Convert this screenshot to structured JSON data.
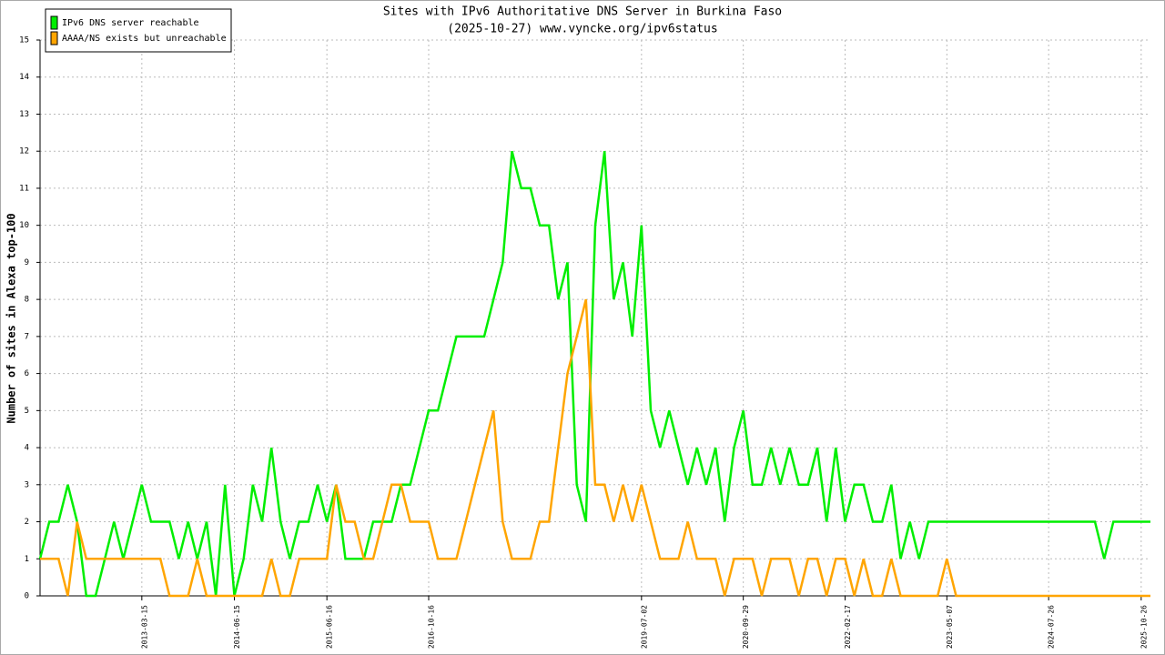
{
  "chart_data": {
    "type": "line",
    "title": "Sites with IPv6 Authoritative DNS Server in Burkina Faso",
    "subtitle": "(2025-10-27) www.vyncke.org/ipv6status",
    "y_label": "Number of sites in Alexa top-100",
    "categories": [
      null,
      null,
      null,
      null,
      null,
      null,
      null,
      null,
      null,
      null,
      null,
      "2013-03-15",
      null,
      null,
      null,
      null,
      null,
      null,
      null,
      null,
      null,
      "2014-06-15",
      null,
      null,
      null,
      null,
      null,
      null,
      null,
      null,
      null,
      "2015-06-16",
      null,
      null,
      null,
      null,
      null,
      null,
      null,
      null,
      null,
      null,
      "2016-10-16",
      null,
      null,
      null,
      null,
      null,
      null,
      null,
      null,
      null,
      null,
      null,
      null,
      null,
      null,
      null,
      null,
      null,
      null,
      null,
      null,
      null,
      null,
      "2019-07-02",
      null,
      null,
      null,
      null,
      null,
      null,
      null,
      null,
      null,
      null,
      "2020-09-29",
      null,
      null,
      null,
      null,
      null,
      null,
      null,
      null,
      null,
      null,
      "2022-02-17",
      null,
      null,
      null,
      null,
      null,
      null,
      null,
      null,
      null,
      null,
      "2023-05-07",
      null,
      null,
      null,
      null,
      null,
      null,
      null,
      null,
      null,
      null,
      "2024-07-26",
      null,
      null,
      null,
      null,
      null,
      null,
      null,
      null,
      null,
      "2025-10-26",
      null
    ],
    "series": [
      {
        "name": "IPv6 DNS server reachable",
        "color": "#00ee00",
        "values": [
          1,
          2,
          2,
          3,
          2,
          0,
          0,
          1,
          2,
          1,
          2,
          3,
          2,
          2,
          2,
          1,
          2,
          1,
          2,
          0,
          3,
          0,
          1,
          3,
          2,
          4,
          2,
          1,
          2,
          2,
          3,
          2,
          3,
          1,
          1,
          1,
          2,
          2,
          2,
          3,
          3,
          4,
          5,
          5,
          6,
          7,
          7,
          7,
          7,
          8,
          9,
          12,
          11,
          11,
          10,
          10,
          8,
          9,
          3,
          2,
          10,
          12,
          8,
          9,
          7,
          10,
          5,
          4,
          5,
          4,
          3,
          4,
          3,
          4,
          2,
          4,
          5,
          3,
          3,
          4,
          3,
          4,
          3,
          3,
          4,
          2,
          4,
          2,
          3,
          3,
          2,
          2,
          3,
          1,
          2,
          1,
          2,
          2,
          2,
          2,
          2,
          2,
          2,
          2,
          2,
          2,
          2,
          2,
          2,
          2,
          2,
          2,
          2,
          2,
          2,
          1,
          2,
          2,
          2,
          2,
          2
        ]
      },
      {
        "name": "AAAA/NS exists but unreachable",
        "color": "#ffa500",
        "values": [
          1,
          1,
          1,
          0,
          2,
          1,
          1,
          1,
          1,
          1,
          1,
          1,
          1,
          1,
          0,
          0,
          0,
          1,
          0,
          0,
          0,
          0,
          0,
          0,
          0,
          1,
          0,
          0,
          1,
          1,
          1,
          1,
          3,
          2,
          2,
          1,
          1,
          2,
          3,
          3,
          2,
          2,
          2,
          1,
          1,
          1,
          2,
          3,
          4,
          5,
          2,
          1,
          1,
          1,
          2,
          2,
          4,
          6,
          7,
          8,
          3,
          3,
          2,
          3,
          2,
          3,
          2,
          1,
          1,
          1,
          2,
          1,
          1,
          1,
          0,
          1,
          1,
          1,
          0,
          1,
          1,
          1,
          0,
          1,
          1,
          0,
          1,
          1,
          0,
          1,
          0,
          0,
          1,
          0,
          0,
          0,
          0,
          0,
          1,
          0,
          0,
          0,
          0,
          0,
          0,
          0,
          0,
          0,
          0,
          0,
          0,
          0,
          0,
          0,
          0,
          0,
          0,
          0,
          0,
          0,
          0
        ]
      }
    ],
    "ylim": [
      0,
      15
    ],
    "yticks": [
      0,
      1,
      2,
      3,
      4,
      5,
      6,
      7,
      8,
      9,
      10,
      11,
      12,
      13,
      14,
      15
    ],
    "grid": true,
    "legend": "top-left"
  }
}
